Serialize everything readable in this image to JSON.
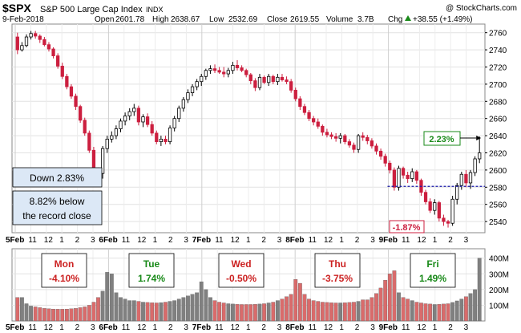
{
  "header": {
    "symbol": "$SPX",
    "name": "S&P 500 Large Cap Index",
    "exchange": "INDX",
    "watermark": "@ StockCharts.com",
    "date": "9-Feb-2018",
    "open_label": "Open",
    "open": "2601.78",
    "high_label": "High",
    "high": "2638.67",
    "low_label": "Low",
    "low": "2532.69",
    "close_label": "Close",
    "close": "2619.55",
    "volume_label": "Volume",
    "volume": "3.7B",
    "chg_label": "Chg",
    "chg": "+38.55 (+1.49%)",
    "chg_icon": "up-triangle-icon"
  },
  "annotations": {
    "down_box": "Down 2.83%",
    "record_line1": "8.82% below",
    "record_line2": "the record close",
    "up_label": "2.23%",
    "low_label": "-1.87%"
  },
  "day_boxes": [
    {
      "day": "Mon",
      "pct": "-4.10%",
      "color": "#cc2222"
    },
    {
      "day": "Tue",
      "pct": "1.74%",
      "color": "#1a8a1a"
    },
    {
      "day": "Wed",
      "pct": "-0.50%",
      "color": "#cc2222"
    },
    {
      "day": "Thu",
      "pct": "-3.75%",
      "color": "#cc2222"
    },
    {
      "day": "Fri",
      "pct": "1.49%",
      "color": "#1a8a1a"
    }
  ],
  "chart_data": {
    "type": "candlestick",
    "y_ticks": [
      2540,
      2560,
      2580,
      2600,
      2620,
      2640,
      2660,
      2680,
      2700,
      2720,
      2740,
      2760
    ],
    "ylim": [
      2527,
      2770
    ],
    "vol_ticks": [
      "100M",
      "200M",
      "300M",
      "400M"
    ],
    "vol_ylim": [
      0,
      460
    ],
    "x_tick_labels": [
      "5Feb",
      "11",
      "12",
      "1",
      "2",
      "3",
      "6Feb",
      "11",
      "12",
      "1",
      "2",
      "3",
      "7Feb",
      "11",
      "12",
      "1",
      "2",
      "3",
      "8Feb",
      "11",
      "12",
      "1",
      "2",
      "3",
      "9Feb",
      "11",
      "12",
      "1",
      "2",
      "3"
    ],
    "reference_close": 2581,
    "callout_price": 2638.67,
    "colors": {
      "up": "#000000",
      "down": "#cc1f3f",
      "vol_up": "#808080",
      "vol_down": "#d96b6b",
      "ref_line": "#1a1aa8"
    },
    "candles": [
      [
        2755,
        2760,
        2735,
        2740,
        1
      ],
      [
        2740,
        2749,
        2738,
        2745,
        4
      ],
      [
        2745,
        2758,
        2743,
        2755,
        4
      ],
      [
        2755,
        2762,
        2752,
        2759,
        4
      ],
      [
        2759,
        2762,
        2753,
        2756,
        0
      ],
      [
        2756,
        2758,
        2748,
        2752,
        0
      ],
      [
        2752,
        2755,
        2744,
        2746,
        0
      ],
      [
        2746,
        2749,
        2738,
        2741,
        0
      ],
      [
        2741,
        2743,
        2730,
        2733,
        0
      ],
      [
        2733,
        2736,
        2718,
        2721,
        0
      ],
      [
        2721,
        2725,
        2706,
        2709,
        0
      ],
      [
        2709,
        2712,
        2694,
        2697,
        0
      ],
      [
        2697,
        2700,
        2683,
        2686,
        0
      ],
      [
        2686,
        2689,
        2670,
        2674,
        0
      ],
      [
        2674,
        2676,
        2655,
        2658,
        0
      ],
      [
        2658,
        2661,
        2640,
        2643,
        0
      ],
      [
        2643,
        2646,
        2620,
        2623,
        0
      ],
      [
        2623,
        2627,
        2596,
        2600,
        0
      ],
      [
        2600,
        2603,
        2593,
        2596,
        2
      ],
      [
        2596,
        2628,
        2590,
        2625,
        1
      ],
      [
        2625,
        2640,
        2620,
        2636,
        1
      ],
      [
        2636,
        2645,
        2632,
        2640,
        1
      ],
      [
        2640,
        2652,
        2636,
        2648,
        1
      ],
      [
        2648,
        2660,
        2644,
        2657,
        1
      ],
      [
        2657,
        2667,
        2652,
        2663,
        1
      ],
      [
        2663,
        2672,
        2658,
        2668,
        1
      ],
      [
        2668,
        2677,
        2663,
        2672,
        1
      ],
      [
        2672,
        2675,
        2652,
        2656,
        0
      ],
      [
        2656,
        2665,
        2650,
        2662,
        1
      ],
      [
        2662,
        2666,
        2650,
        2653,
        0
      ],
      [
        2653,
        2657,
        2640,
        2643,
        0
      ],
      [
        2643,
        2646,
        2630,
        2633,
        0
      ],
      [
        2633,
        2640,
        2628,
        2636,
        1
      ],
      [
        2636,
        2640,
        2630,
        2633,
        0
      ],
      [
        2633,
        2652,
        2630,
        2649,
        1
      ],
      [
        2649,
        2663,
        2645,
        2660,
        1
      ],
      [
        2660,
        2675,
        2656,
        2672,
        1
      ],
      [
        2672,
        2685,
        2668,
        2682,
        1
      ],
      [
        2682,
        2694,
        2678,
        2690,
        1
      ],
      [
        2690,
        2700,
        2686,
        2697,
        1
      ],
      [
        2697,
        2706,
        2693,
        2703,
        1
      ],
      [
        2703,
        2712,
        2698,
        2709,
        1
      ],
      [
        2709,
        2718,
        2705,
        2716,
        1
      ],
      [
        2716,
        2722,
        2712,
        2718,
        1
      ],
      [
        2718,
        2723,
        2713,
        2716,
        0
      ],
      [
        2716,
        2720,
        2712,
        2714,
        0
      ],
      [
        2714,
        2720,
        2708,
        2712,
        0
      ],
      [
        2712,
        2719,
        2708,
        2716,
        1
      ],
      [
        2716,
        2726,
        2712,
        2722,
        1
      ],
      [
        2722,
        2728,
        2716,
        2719,
        0
      ],
      [
        2719,
        2722,
        2714,
        2716,
        0
      ],
      [
        2716,
        2718,
        2708,
        2711,
        0
      ],
      [
        2711,
        2713,
        2700,
        2704,
        0
      ],
      [
        2704,
        2707,
        2692,
        2696,
        0
      ],
      [
        2696,
        2712,
        2693,
        2708,
        1
      ],
      [
        2708,
        2710,
        2700,
        2702,
        0
      ],
      [
        2702,
        2712,
        2698,
        2709,
        1
      ],
      [
        2709,
        2711,
        2700,
        2703,
        0
      ],
      [
        2703,
        2712,
        2699,
        2708,
        1
      ],
      [
        2708,
        2712,
        2703,
        2705,
        0
      ],
      [
        2705,
        2709,
        2700,
        2703,
        0
      ],
      [
        2703,
        2706,
        2690,
        2693,
        0
      ],
      [
        2693,
        2696,
        2680,
        2683,
        0
      ],
      [
        2683,
        2686,
        2670,
        2674,
        0
      ],
      [
        2674,
        2677,
        2664,
        2667,
        0
      ],
      [
        2667,
        2670,
        2657,
        2660,
        0
      ],
      [
        2660,
        2663,
        2652,
        2656,
        0
      ],
      [
        2656,
        2660,
        2648,
        2651,
        0
      ],
      [
        2651,
        2653,
        2640,
        2644,
        0
      ],
      [
        2644,
        2648,
        2638,
        2641,
        0
      ],
      [
        2641,
        2644,
        2636,
        2639,
        0
      ],
      [
        2639,
        2643,
        2633,
        2637,
        0
      ],
      [
        2637,
        2643,
        2631,
        2640,
        1
      ],
      [
        2640,
        2642,
        2630,
        2633,
        0
      ],
      [
        2633,
        2636,
        2626,
        2629,
        0
      ],
      [
        2629,
        2632,
        2620,
        2624,
        0
      ],
      [
        2624,
        2642,
        2620,
        2640,
        1
      ],
      [
        2640,
        2644,
        2634,
        2638,
        0
      ],
      [
        2638,
        2641,
        2630,
        2634,
        0
      ],
      [
        2634,
        2637,
        2625,
        2628,
        0
      ],
      [
        2628,
        2631,
        2618,
        2622,
        0
      ],
      [
        2622,
        2625,
        2612,
        2616,
        0
      ],
      [
        2616,
        2619,
        2604,
        2608,
        0
      ],
      [
        2608,
        2611,
        2596,
        2600,
        0
      ],
      [
        2600,
        2603,
        2576,
        2580,
        0
      ],
      [
        2580,
        2605,
        2576,
        2602,
        1
      ],
      [
        2602,
        2604,
        2590,
        2594,
        0
      ],
      [
        2594,
        2598,
        2585,
        2590,
        0
      ],
      [
        2590,
        2602,
        2586,
        2598,
        1
      ],
      [
        2598,
        2600,
        2584,
        2588,
        0
      ],
      [
        2588,
        2590,
        2570,
        2574,
        0
      ],
      [
        2574,
        2577,
        2560,
        2563,
        0
      ],
      [
        2563,
        2567,
        2550,
        2553,
        0
      ],
      [
        2553,
        2566,
        2548,
        2562,
        1
      ],
      [
        2562,
        2564,
        2540,
        2544,
        0
      ],
      [
        2544,
        2548,
        2535,
        2540,
        0
      ],
      [
        2540,
        2542,
        2533,
        2538,
        0
      ],
      [
        2538,
        2570,
        2535,
        2566,
        1
      ],
      [
        2566,
        2585,
        2560,
        2582,
        1
      ],
      [
        2582,
        2598,
        2577,
        2595,
        1
      ],
      [
        2595,
        2600,
        2580,
        2585,
        0
      ],
      [
        2585,
        2600,
        2578,
        2597,
        1
      ],
      [
        2597,
        2616,
        2593,
        2613,
        1
      ],
      [
        2613,
        2639,
        2608,
        2620,
        1
      ]
    ],
    "volume_highlight": [
      {
        "day": "Mon",
        "pattern": [
          150,
          110,
          95,
          90,
          85,
          80,
          78,
          76,
          75,
          75,
          76,
          78,
          80,
          85,
          90,
          100,
          120,
          150,
          190,
          310
        ]
      },
      {
        "day": "Tue",
        "pattern": [
          300,
          180,
          150,
          140,
          130,
          125,
          120,
          118,
          116,
          115,
          117,
          120,
          125,
          130,
          140,
          150,
          160,
          170,
          180,
          250
        ]
      },
      {
        "day": "Wed",
        "pattern": [
          200,
          150,
          130,
          120,
          115,
          110,
          108,
          106,
          105,
          105,
          106,
          108,
          110,
          115,
          120,
          130,
          140,
          155,
          170,
          265
        ]
      },
      {
        "day": "Thu",
        "pattern": [
          240,
          170,
          140,
          130,
          125,
          120,
          118,
          116,
          115,
          115,
          116,
          118,
          120,
          125,
          135,
          150,
          175,
          210,
          260,
          300
        ]
      },
      {
        "day": "Fri",
        "pattern": [
          320,
          180,
          150,
          140,
          130,
          120,
          115,
          110,
          108,
          105,
          106,
          108,
          110,
          118,
          128,
          140,
          155,
          175,
          200,
          400
        ]
      }
    ]
  }
}
